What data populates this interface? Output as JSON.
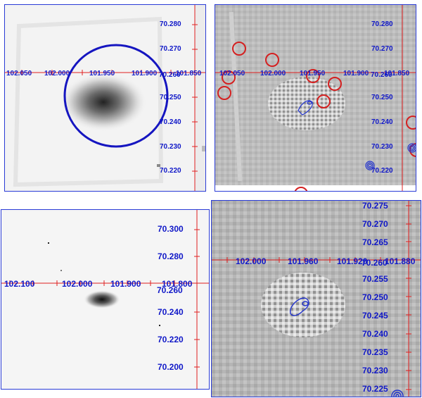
{
  "panels": [
    {
      "id": "top-left",
      "ra_labels": [
        "102.050",
        "102.000",
        "101.950",
        "101.900",
        "101.850"
      ],
      "dec_labels": [
        "70.280",
        "70.270",
        "70.260",
        "70.250",
        "70.240",
        "70.230",
        "70.220"
      ]
    },
    {
      "id": "top-right",
      "ra_labels": [
        "102.050",
        "102.000",
        "101.950",
        "101.900",
        "101.850"
      ],
      "dec_labels": [
        "70.280",
        "70.270",
        "70.260",
        "70.250",
        "70.240",
        "70.230",
        "70.220"
      ]
    },
    {
      "id": "bottom-left",
      "ra_labels": [
        "102.100",
        "102.000",
        "101.900",
        "101.800"
      ],
      "dec_labels": [
        "70.300",
        "70.280",
        "70.260",
        "70.240",
        "70.220",
        "70.200"
      ]
    },
    {
      "id": "bottom-right",
      "ra_labels": [
        "102.000",
        "101.960",
        "101.920",
        "101.880"
      ],
      "dec_labels": [
        "70.275",
        "70.270",
        "70.265",
        "70.260",
        "70.255",
        "70.250",
        "70.245",
        "70.240",
        "70.235",
        "70.230",
        "70.225"
      ]
    }
  ],
  "colors": {
    "border": "#2a3bd6",
    "coord_text": "#1018c8",
    "crosshair": "#e02020",
    "region_circle": "#d42020",
    "contour": "#2233cc",
    "aperture": "#1515c0"
  }
}
